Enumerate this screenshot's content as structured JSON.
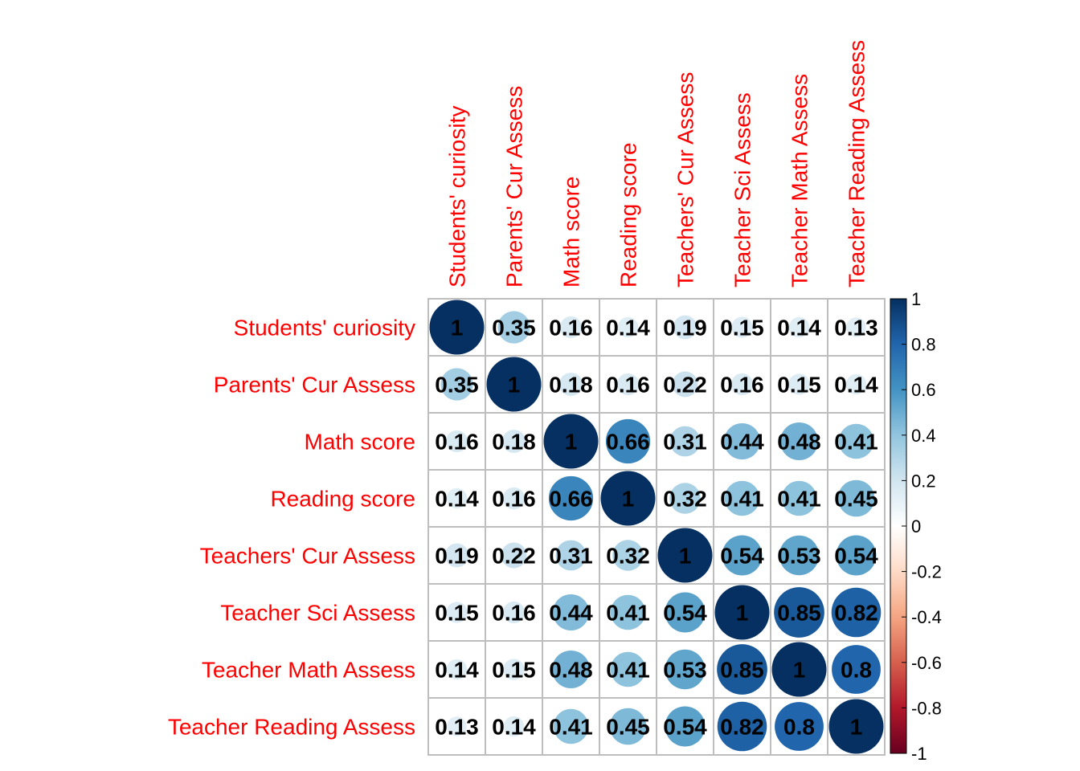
{
  "chart_data": {
    "type": "heatmap",
    "glyph": "circle",
    "title": "",
    "variables": [
      "Students' curiosity",
      "Parents' Cur Assess",
      "Math score",
      "Reading score",
      "Teachers' Cur Assess",
      "Teacher Sci Assess",
      "Teacher Math Assess",
      "Teacher Reading Assess"
    ],
    "matrix": [
      [
        1,
        0.35,
        0.16,
        0.14,
        0.19,
        0.15,
        0.14,
        0.13
      ],
      [
        0.35,
        1,
        0.18,
        0.16,
        0.22,
        0.16,
        0.15,
        0.14
      ],
      [
        0.16,
        0.18,
        1,
        0.66,
        0.31,
        0.44,
        0.48,
        0.41
      ],
      [
        0.14,
        0.16,
        0.66,
        1,
        0.32,
        0.41,
        0.41,
        0.45
      ],
      [
        0.19,
        0.22,
        0.31,
        0.32,
        1,
        0.54,
        0.53,
        0.54
      ],
      [
        0.15,
        0.16,
        0.44,
        0.41,
        0.54,
        1,
        0.85,
        0.82
      ],
      [
        0.14,
        0.15,
        0.48,
        0.41,
        0.53,
        0.85,
        1,
        0.8
      ],
      [
        0.13,
        0.14,
        0.41,
        0.45,
        0.54,
        0.82,
        0.8,
        1
      ]
    ],
    "labels": [
      [
        "1",
        "0.35",
        "0.16",
        "0.14",
        "0.19",
        "0.15",
        "0.14",
        "0.13"
      ],
      [
        "0.35",
        "1",
        "0.18",
        "0.16",
        "0.22",
        "0.16",
        "0.15",
        "0.14"
      ],
      [
        "0.16",
        "0.18",
        "1",
        "0.66",
        "0.31",
        "0.44",
        "0.48",
        "0.41"
      ],
      [
        "0.14",
        "0.16",
        "0.66",
        "1",
        "0.32",
        "0.41",
        "0.41",
        "0.45"
      ],
      [
        "0.19",
        "0.22",
        "0.31",
        "0.32",
        "1",
        "0.54",
        "0.53",
        "0.54"
      ],
      [
        "0.15",
        "0.16",
        "0.44",
        "0.41",
        "0.54",
        "1",
        "0.85",
        "0.82"
      ],
      [
        "0.14",
        "0.15",
        "0.48",
        "0.41",
        "0.53",
        "0.85",
        "1",
        "0.8"
      ],
      [
        "0.13",
        "0.14",
        "0.41",
        "0.45",
        "0.54",
        "0.82",
        "0.8",
        "1"
      ]
    ],
    "colorbar": {
      "range": [
        -1,
        1
      ],
      "ticks": [
        "1",
        "0.8",
        "0.6",
        "0.4",
        "0.2",
        "0",
        "-0.2",
        "-0.4",
        "-0.6",
        "-0.8",
        "-1"
      ],
      "tick_values": [
        1,
        0.8,
        0.6,
        0.4,
        0.2,
        0,
        -0.2,
        -0.4,
        -0.6,
        -0.8,
        -1
      ],
      "palette": [
        "#67001f",
        "#b2182b",
        "#d6604d",
        "#f4a582",
        "#fddbc7",
        "#ffffff",
        "#d1e5f0",
        "#92c5de",
        "#4393c3",
        "#2166ac",
        "#053061"
      ],
      "position": "right"
    },
    "label_color": "#ff0000",
    "grid_color": "#bebebe"
  }
}
